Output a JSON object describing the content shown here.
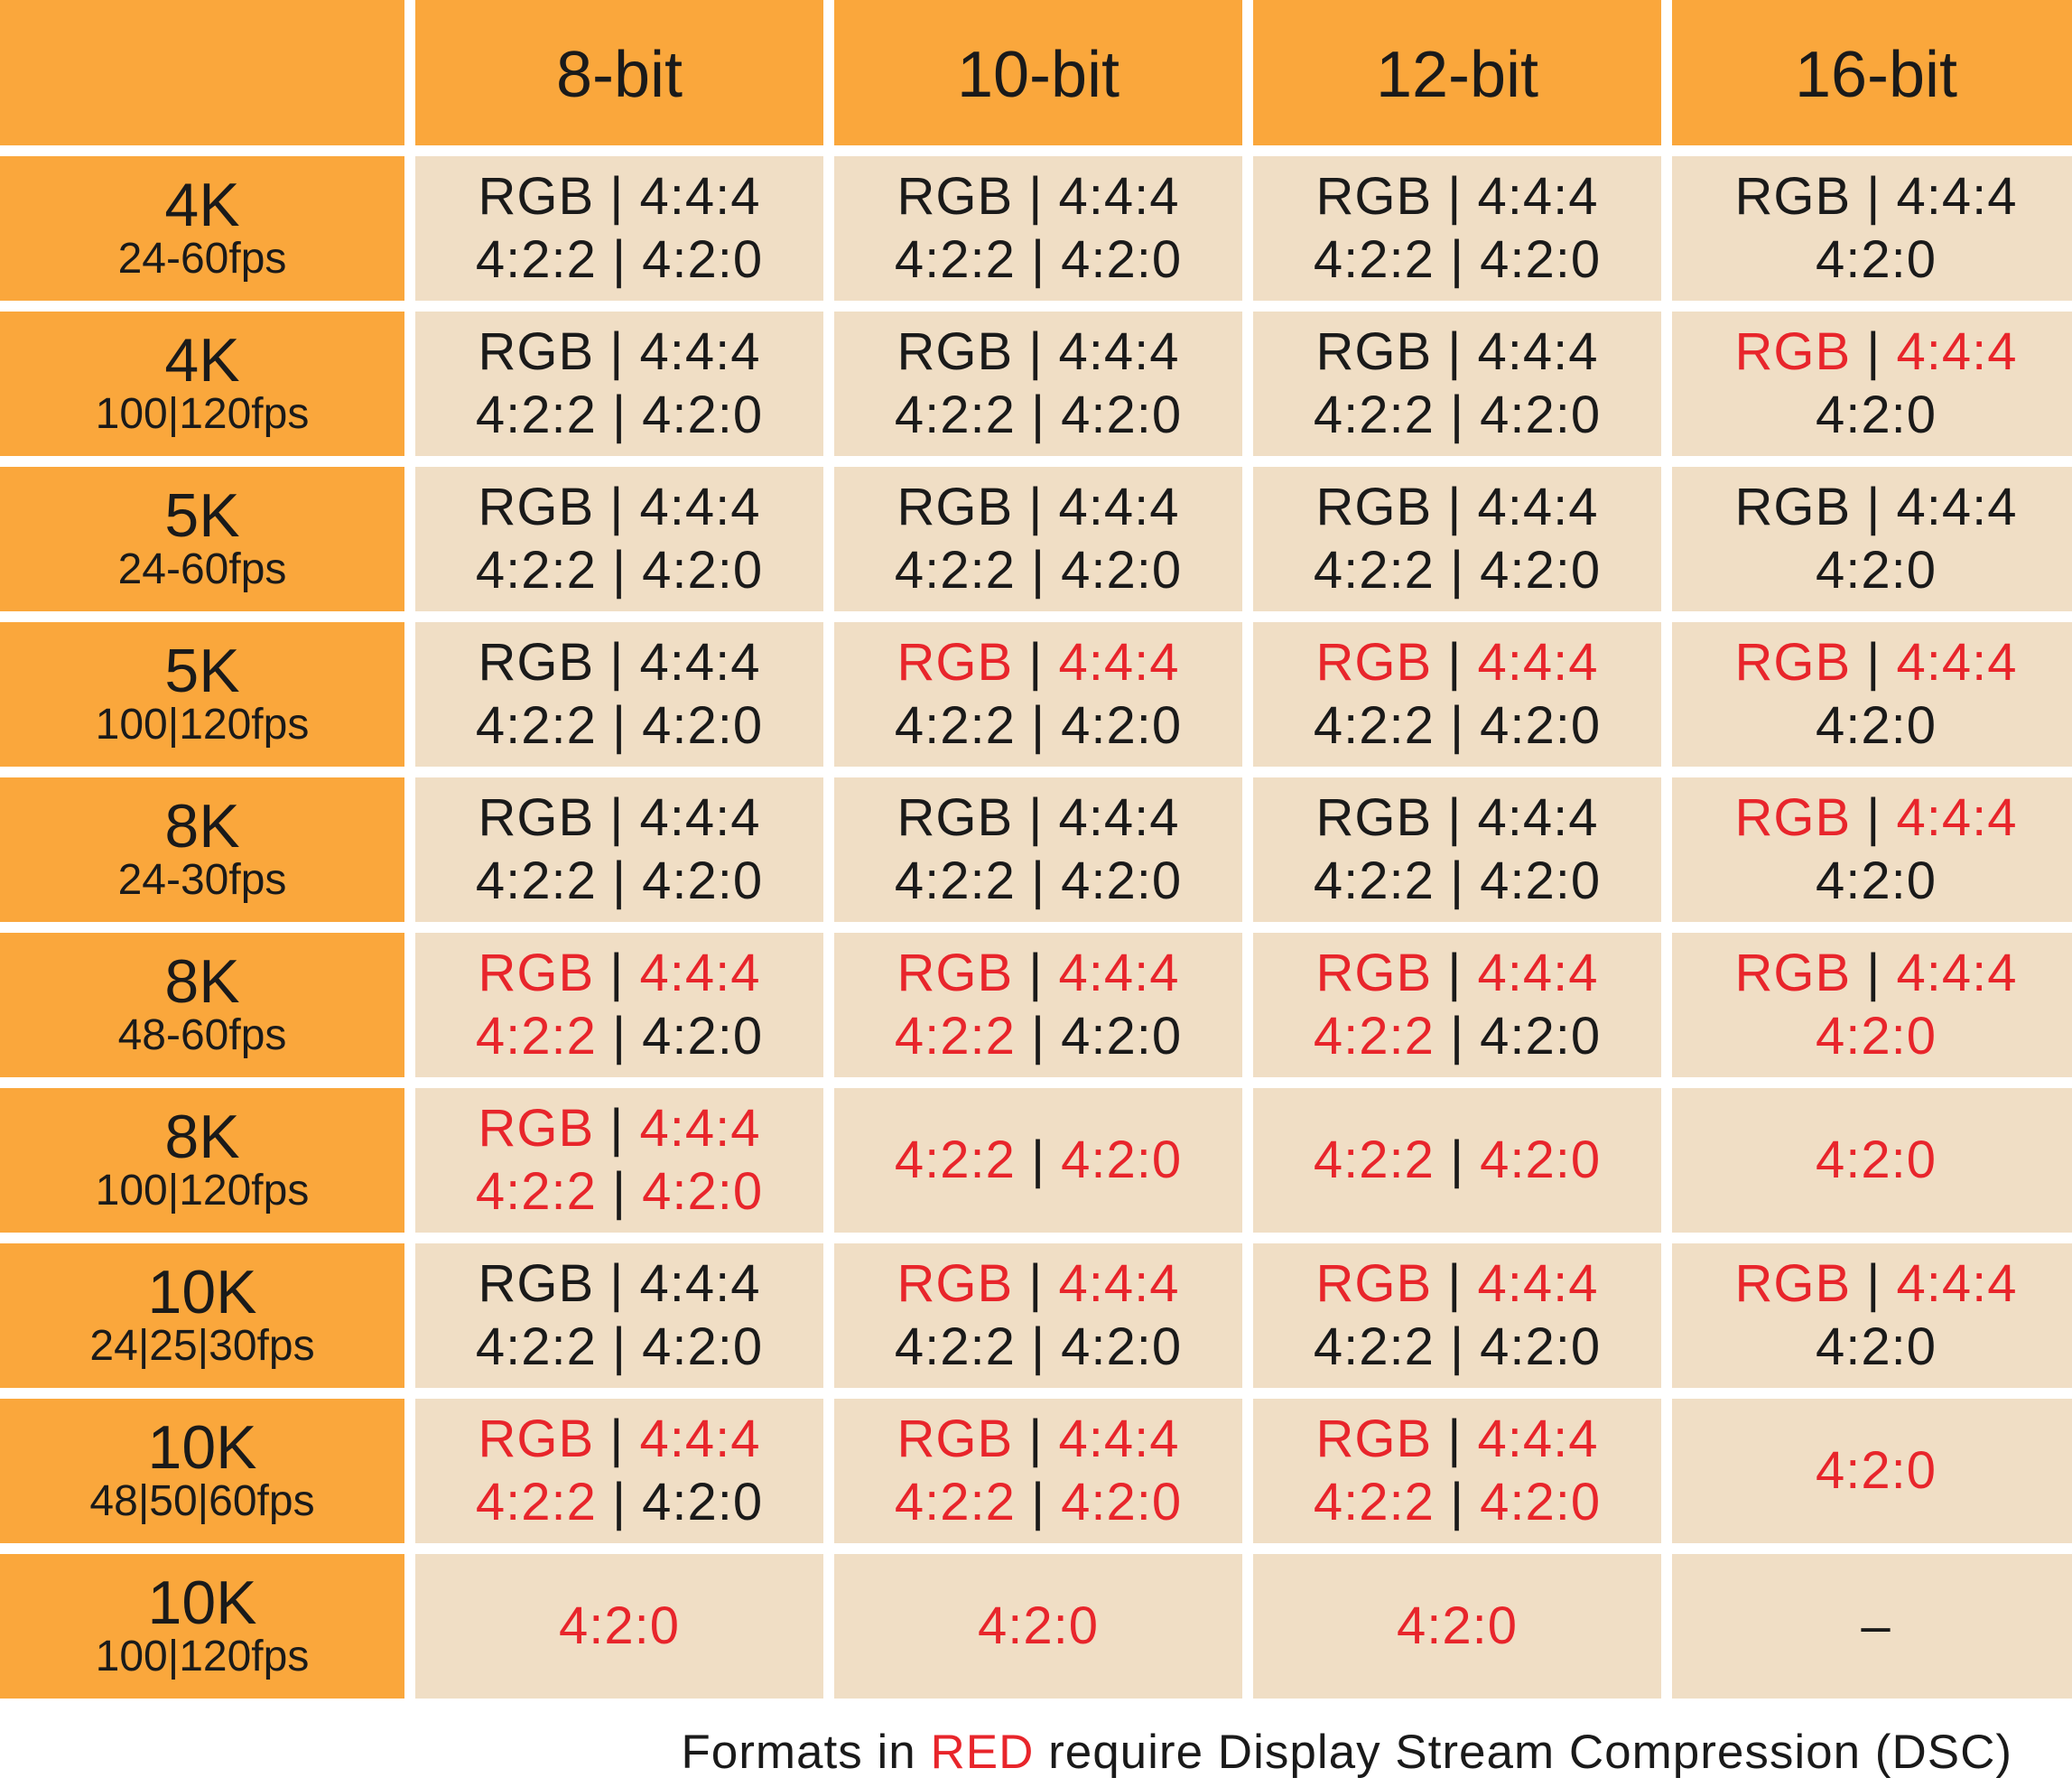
{
  "columns": [
    "8-bit",
    "10-bit",
    "12-bit",
    "16-bit"
  ],
  "rows": [
    {
      "res": "4K",
      "fps": "24-60fps",
      "cells": [
        [
          [
            [
              "RGB | 4:4:4",
              false
            ]
          ],
          [
            [
              "4:2:2 | 4:2:0",
              false
            ]
          ]
        ],
        [
          [
            [
              "RGB | 4:4:4",
              false
            ]
          ],
          [
            [
              "4:2:2 | 4:2:0",
              false
            ]
          ]
        ],
        [
          [
            [
              "RGB | 4:4:4",
              false
            ]
          ],
          [
            [
              "4:2:2 | 4:2:0",
              false
            ]
          ]
        ],
        [
          [
            [
              "RGB | 4:4:4",
              false
            ]
          ],
          [
            [
              "4:2:0",
              false
            ]
          ]
        ]
      ]
    },
    {
      "res": "4K",
      "fps": "100|120fps",
      "cells": [
        [
          [
            [
              "RGB | 4:4:4",
              false
            ]
          ],
          [
            [
              "4:2:2 | 4:2:0",
              false
            ]
          ]
        ],
        [
          [
            [
              "RGB | 4:4:4",
              false
            ]
          ],
          [
            [
              "4:2:2 | 4:2:0",
              false
            ]
          ]
        ],
        [
          [
            [
              "RGB | 4:4:4",
              false
            ]
          ],
          [
            [
              "4:2:2 | 4:2:0",
              false
            ]
          ]
        ],
        [
          [
            [
              "RGB",
              true
            ],
            [
              " | ",
              false
            ],
            [
              "4:4:4",
              true
            ]
          ],
          [
            [
              "4:2:0",
              false
            ]
          ]
        ]
      ]
    },
    {
      "res": "5K",
      "fps": "24-60fps",
      "cells": [
        [
          [
            [
              "RGB | 4:4:4",
              false
            ]
          ],
          [
            [
              "4:2:2 | 4:2:0",
              false
            ]
          ]
        ],
        [
          [
            [
              "RGB | 4:4:4",
              false
            ]
          ],
          [
            [
              "4:2:2 | 4:2:0",
              false
            ]
          ]
        ],
        [
          [
            [
              "RGB | 4:4:4",
              false
            ]
          ],
          [
            [
              "4:2:2 | 4:2:0",
              false
            ]
          ]
        ],
        [
          [
            [
              "RGB | 4:4:4",
              false
            ]
          ],
          [
            [
              "4:2:0",
              false
            ]
          ]
        ]
      ]
    },
    {
      "res": "5K",
      "fps": "100|120fps",
      "cells": [
        [
          [
            [
              "RGB | 4:4:4",
              false
            ]
          ],
          [
            [
              "4:2:2 | 4:2:0",
              false
            ]
          ]
        ],
        [
          [
            [
              "RGB",
              true
            ],
            [
              " | ",
              false
            ],
            [
              "4:4:4",
              true
            ]
          ],
          [
            [
              "4:2:2 | 4:2:0",
              false
            ]
          ]
        ],
        [
          [
            [
              "RGB",
              true
            ],
            [
              " | ",
              false
            ],
            [
              "4:4:4",
              true
            ]
          ],
          [
            [
              "4:2:2 | 4:2:0",
              false
            ]
          ]
        ],
        [
          [
            [
              "RGB",
              true
            ],
            [
              " | ",
              false
            ],
            [
              "4:4:4",
              true
            ]
          ],
          [
            [
              "4:2:0",
              false
            ]
          ]
        ]
      ]
    },
    {
      "res": "8K",
      "fps": "24-30fps",
      "cells": [
        [
          [
            [
              "RGB | 4:4:4",
              false
            ]
          ],
          [
            [
              "4:2:2 | 4:2:0",
              false
            ]
          ]
        ],
        [
          [
            [
              "RGB | 4:4:4",
              false
            ]
          ],
          [
            [
              "4:2:2 | 4:2:0",
              false
            ]
          ]
        ],
        [
          [
            [
              "RGB | 4:4:4",
              false
            ]
          ],
          [
            [
              "4:2:2 | 4:2:0",
              false
            ]
          ]
        ],
        [
          [
            [
              "RGB",
              true
            ],
            [
              " | ",
              false
            ],
            [
              "4:4:4",
              true
            ]
          ],
          [
            [
              "4:2:0",
              false
            ]
          ]
        ]
      ]
    },
    {
      "res": "8K",
      "fps": "48-60fps",
      "cells": [
        [
          [
            [
              "RGB",
              true
            ],
            [
              " | ",
              false
            ],
            [
              "4:4:4",
              true
            ]
          ],
          [
            [
              "4:2:2",
              true
            ],
            [
              " | 4:2:0",
              false
            ]
          ]
        ],
        [
          [
            [
              "RGB",
              true
            ],
            [
              " | ",
              false
            ],
            [
              "4:4:4",
              true
            ]
          ],
          [
            [
              "4:2:2",
              true
            ],
            [
              " | 4:2:0",
              false
            ]
          ]
        ],
        [
          [
            [
              "RGB",
              true
            ],
            [
              " | ",
              false
            ],
            [
              "4:4:4",
              true
            ]
          ],
          [
            [
              "4:2:2",
              true
            ],
            [
              " | 4:2:0",
              false
            ]
          ]
        ],
        [
          [
            [
              "RGB",
              true
            ],
            [
              " | ",
              false
            ],
            [
              "4:4:4",
              true
            ]
          ],
          [
            [
              "4:2:0",
              true
            ]
          ]
        ]
      ]
    },
    {
      "res": "8K",
      "fps": "100|120fps",
      "cells": [
        [
          [
            [
              "RGB",
              true
            ],
            [
              " | ",
              false
            ],
            [
              "4:4:4",
              true
            ]
          ],
          [
            [
              "4:2:2",
              true
            ],
            [
              " | ",
              false
            ],
            [
              "4:2:0",
              true
            ]
          ]
        ],
        [
          [
            [
              "4:2:2",
              true
            ],
            [
              " | ",
              false
            ],
            [
              "4:2:0",
              true
            ]
          ]
        ],
        [
          [
            [
              "4:2:2",
              true
            ],
            [
              " | ",
              false
            ],
            [
              "4:2:0",
              true
            ]
          ]
        ],
        [
          [
            [
              "4:2:0",
              true
            ]
          ]
        ]
      ]
    },
    {
      "res": "10K",
      "fps": "24|25|30fps",
      "cells": [
        [
          [
            [
              "RGB | 4:4:4",
              false
            ]
          ],
          [
            [
              "4:2:2 | 4:2:0",
              false
            ]
          ]
        ],
        [
          [
            [
              "RGB",
              true
            ],
            [
              " | ",
              false
            ],
            [
              "4:4:4",
              true
            ]
          ],
          [
            [
              "4:2:2 | 4:2:0",
              false
            ]
          ]
        ],
        [
          [
            [
              "RGB",
              true
            ],
            [
              " | ",
              false
            ],
            [
              "4:4:4",
              true
            ]
          ],
          [
            [
              "4:2:2 | 4:2:0",
              false
            ]
          ]
        ],
        [
          [
            [
              "RGB",
              true
            ],
            [
              " | ",
              false
            ],
            [
              "4:4:4",
              true
            ]
          ],
          [
            [
              "4:2:0",
              false
            ]
          ]
        ]
      ]
    },
    {
      "res": "10K",
      "fps": "48|50|60fps",
      "cells": [
        [
          [
            [
              "RGB",
              true
            ],
            [
              " | ",
              false
            ],
            [
              "4:4:4",
              true
            ]
          ],
          [
            [
              "4:2:2",
              true
            ],
            [
              " | 4:2:0",
              false
            ]
          ]
        ],
        [
          [
            [
              "RGB",
              true
            ],
            [
              " | ",
              false
            ],
            [
              "4:4:4",
              true
            ]
          ],
          [
            [
              "4:2:2",
              true
            ],
            [
              " | ",
              false
            ],
            [
              "4:2:0",
              true
            ]
          ]
        ],
        [
          [
            [
              "RGB",
              true
            ],
            [
              " | ",
              false
            ],
            [
              "4:4:4",
              true
            ]
          ],
          [
            [
              "4:2:2",
              true
            ],
            [
              " | ",
              false
            ],
            [
              "4:2:0",
              true
            ]
          ]
        ],
        [
          [
            [
              "4:2:0",
              true
            ]
          ]
        ]
      ]
    },
    {
      "res": "10K",
      "fps": "100|120fps",
      "cells": [
        [
          [
            [
              "4:2:0",
              true
            ]
          ]
        ],
        [
          [
            [
              "4:2:0",
              true
            ]
          ]
        ],
        [
          [
            [
              "4:2:0",
              true
            ]
          ]
        ],
        [
          [
            [
              "–",
              false
            ]
          ]
        ]
      ]
    }
  ],
  "footer": [
    [
      "Formats in ",
      false
    ],
    [
      "RED",
      true
    ],
    [
      " require Display Stream Compression (DSC)",
      false
    ]
  ],
  "colors": {
    "header_bg": "#faa73c",
    "cell_bg": "#f0dec5",
    "red_text": "#e8252b",
    "black_text": "#1a1a1a"
  }
}
